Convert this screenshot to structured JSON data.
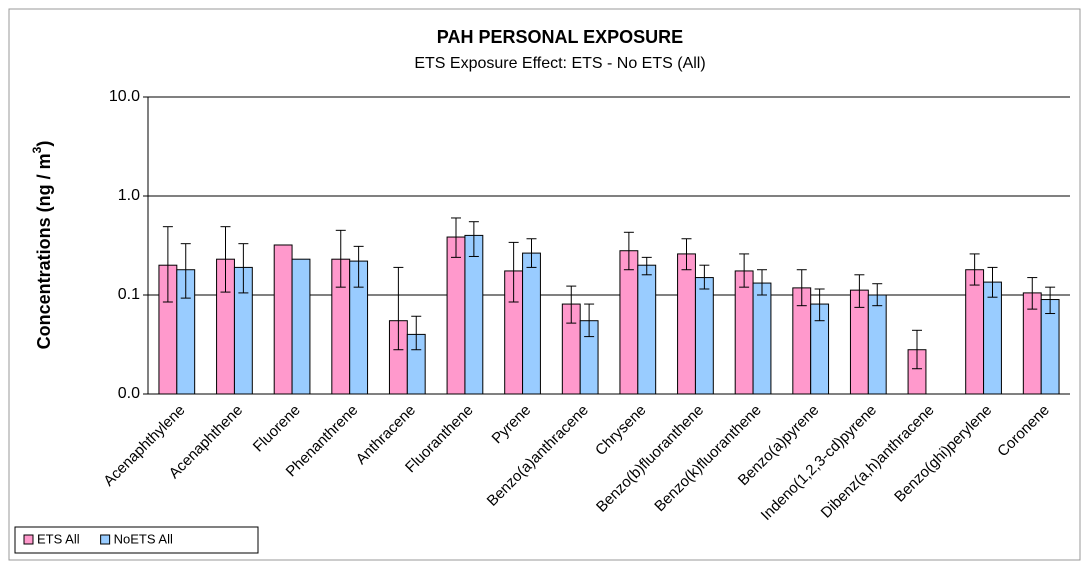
{
  "chart_data": {
    "type": "bar",
    "title": "PAH PERSONAL EXPOSURE",
    "subtitle": "ETS Exposure Effect: ETS - No ETS (All)",
    "y_label": "Concentrations (ng / m",
    "y_label_superscript": "3",
    "y_label_end": ")",
    "log_scale": true,
    "grid": true,
    "legend": "bottom-left",
    "ylim": [
      0.01,
      10
    ],
    "yticks": [
      {
        "value": 0.01,
        "label": "0.0"
      },
      {
        "value": 0.1,
        "label": "0.1"
      },
      {
        "value": 1,
        "label": "1.0"
      },
      {
        "value": 10,
        "label": "10.0"
      }
    ],
    "categories": [
      "Acenaphthylene",
      "Acenaphthene",
      "Fluorene",
      "Phenanthrene",
      "Anthracene",
      "Fluoranthene",
      "Pyrene",
      "Benzo(a)anthracene",
      "Chrysene",
      "Benzo(b)fluoranthene",
      "Benzo(k)fluoranthene",
      "Benzo(a)pyrene",
      "Indeno(1,2,3-cd)pyrene",
      "Dibenz(a,h)anthracene",
      "Benzo(ghi)perylene",
      "Coronene"
    ],
    "series": [
      {
        "name": "ETS All",
        "color": "#ff99cc",
        "values": [
          0.2,
          0.23,
          0.32,
          0.23,
          0.055,
          0.385,
          0.175,
          0.081,
          0.28,
          0.26,
          0.175,
          0.118,
          0.112,
          0.028,
          0.18,
          0.105
        ],
        "error_lower": [
          0.085,
          0.107,
          null,
          0.12,
          0.028,
          0.24,
          0.085,
          0.052,
          0.18,
          0.18,
          0.12,
          0.078,
          0.075,
          0.018,
          0.126,
          0.072
        ],
        "error_upper": [
          0.49,
          0.49,
          null,
          0.45,
          0.19,
          0.6,
          0.34,
          0.123,
          0.43,
          0.37,
          0.26,
          0.18,
          0.16,
          0.044,
          0.26,
          0.15
        ]
      },
      {
        "name": "NoETS All",
        "color": "#99ccff",
        "values": [
          0.18,
          0.19,
          0.23,
          0.22,
          0.04,
          0.4,
          0.265,
          0.055,
          0.2,
          0.15,
          0.132,
          0.081,
          0.1,
          null,
          0.135,
          0.09
        ],
        "error_lower": [
          0.093,
          0.105,
          null,
          0.12,
          0.028,
          0.245,
          0.19,
          0.038,
          0.16,
          0.115,
          0.1,
          0.055,
          0.078,
          null,
          0.095,
          0.065
        ],
        "error_upper": [
          0.33,
          0.33,
          null,
          0.31,
          0.061,
          0.55,
          0.37,
          0.081,
          0.24,
          0.2,
          0.18,
          0.115,
          0.13,
          null,
          0.19,
          0.12
        ]
      }
    ]
  }
}
